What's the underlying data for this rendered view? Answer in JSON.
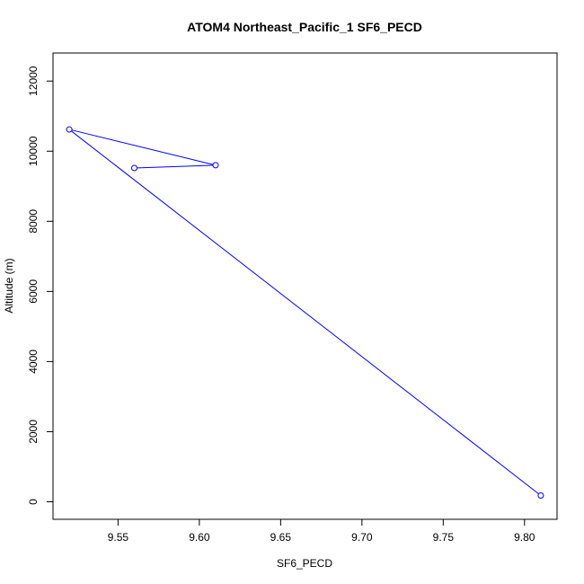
{
  "chart_data": {
    "type": "line",
    "title": "ATOM4 Northeast_Pacific_1 SF6_PECD",
    "xlabel": "SF6_PECD",
    "ylabel": "Altitude (m)",
    "xlim": [
      9.51,
      9.82
    ],
    "ylim": [
      -500,
      12800
    ],
    "x_ticks": [
      9.55,
      9.6,
      9.65,
      9.7,
      9.75,
      9.8
    ],
    "x_tick_labels": [
      "9.55",
      "9.60",
      "9.65",
      "9.70",
      "9.75",
      "9.80"
    ],
    "y_ticks": [
      0,
      2000,
      4000,
      6000,
      8000,
      10000,
      12000
    ],
    "y_tick_labels": [
      "0",
      "2000",
      "4000",
      "6000",
      "8000",
      "10000",
      "12000"
    ],
    "grid": false,
    "series": [
      {
        "color": "#0000ff",
        "marker": "open-circle",
        "points": [
          {
            "x": 9.81,
            "y": 180
          },
          {
            "x": 9.52,
            "y": 10620
          },
          {
            "x": 9.61,
            "y": 9600
          },
          {
            "x": 9.56,
            "y": 9520
          }
        ]
      }
    ]
  }
}
